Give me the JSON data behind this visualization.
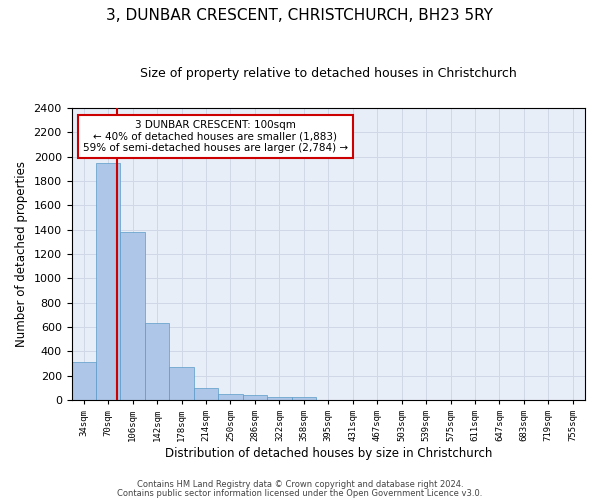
{
  "title": "3, DUNBAR CRESCENT, CHRISTCHURCH, BH23 5RY",
  "subtitle": "Size of property relative to detached houses in Christchurch",
  "xlabel": "Distribution of detached houses by size in Christchurch",
  "ylabel": "Number of detached properties",
  "footnote1": "Contains HM Land Registry data © Crown copyright and database right 2024.",
  "footnote2": "Contains public sector information licensed under the Open Government Licence v3.0.",
  "bin_labels": [
    "34sqm",
    "70sqm",
    "106sqm",
    "142sqm",
    "178sqm",
    "214sqm",
    "250sqm",
    "286sqm",
    "322sqm",
    "358sqm",
    "395sqm",
    "431sqm",
    "467sqm",
    "503sqm",
    "539sqm",
    "575sqm",
    "611sqm",
    "647sqm",
    "683sqm",
    "719sqm",
    "755sqm"
  ],
  "bar_values": [
    315,
    1950,
    1380,
    630,
    270,
    100,
    50,
    40,
    30,
    22,
    0,
    0,
    0,
    0,
    0,
    0,
    0,
    0,
    0,
    0,
    0
  ],
  "bar_color": "#aec6e8",
  "bar_edge_color": "#5a9ac8",
  "vline_x": 1.85,
  "vline_color": "#cc0000",
  "annotation_text": "3 DUNBAR CRESCENT: 100sqm\n← 40% of detached houses are smaller (1,883)\n59% of semi-detached houses are larger (2,784) →",
  "annotation_box_color": "#cc0000",
  "annotation_text_color": "#000000",
  "ylim": [
    0,
    2400
  ],
  "yticks": [
    0,
    200,
    400,
    600,
    800,
    1000,
    1200,
    1400,
    1600,
    1800,
    2000,
    2200,
    2400
  ],
  "grid_color": "#d0d8e8",
  "background_color": "#e8eef8",
  "title_fontsize": 11,
  "subtitle_fontsize": 9,
  "footnote_fontsize": 6
}
